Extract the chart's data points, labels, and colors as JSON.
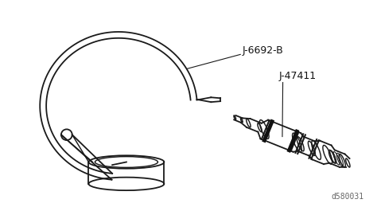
{
  "background_color": "#ffffff",
  "label1": "J-6692-B",
  "label2": "J-47411",
  "watermark": "d580031",
  "line_color": "#1a1a1a",
  "text_color": "#111111",
  "fig_width": 4.74,
  "fig_height": 2.65,
  "dpi": 100
}
